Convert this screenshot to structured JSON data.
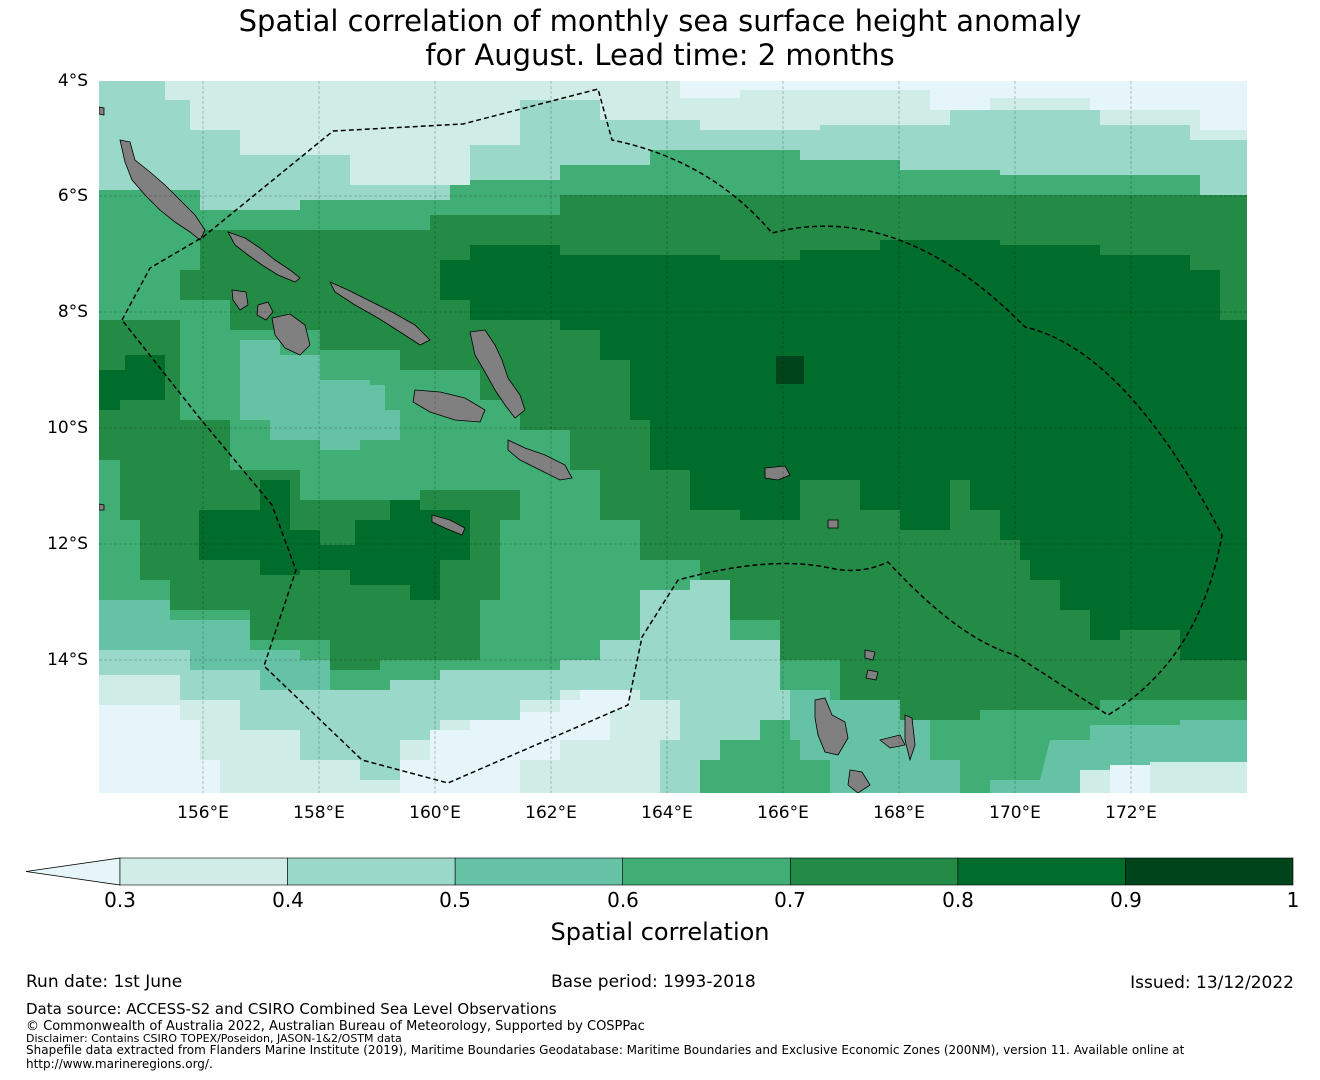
{
  "title_line1": "Spatial correlation of monthly sea surface height anomaly",
  "title_line2": "for August. Lead time: 2 months",
  "lat_labels": [
    "4°S",
    "6°S",
    "8°S",
    "10°S",
    "12°S",
    "14°S"
  ],
  "lon_labels": [
    "156°E",
    "158°E",
    "160°E",
    "162°E",
    "164°E",
    "166°E",
    "168°E",
    "170°E",
    "172°E"
  ],
  "colorbar": {
    "ticks": [
      "0.3",
      "0.4",
      "0.5",
      "0.6",
      "0.7",
      "0.8",
      "0.9",
      "1"
    ],
    "colors": [
      "#cfece6",
      "#9ad8c9",
      "#66c2a4",
      "#41ae76",
      "#238b45",
      "#006d2c",
      "#00441b"
    ],
    "extend_color": "#e5f5f9",
    "label": "Spatial correlation"
  },
  "land_color": "#808080",
  "footer": {
    "run_date": "Run date: 1st June",
    "base_period": "Base period: 1993-2018",
    "issued": "Issued: 13/12/2022",
    "data_source": "Data source: ACCESS-S2 and CSIRO Combined Sea Level Observations",
    "copyright": "© Commonwealth of Australia 2022, Australian Bureau of Meteorology, Supported by COSPPac",
    "disclaimer": "Disclaimer: Contains CSIRO TOPEX/Poseidon, JASON-1&2/OSTM data",
    "shapefile": "Shapefile data extracted from Flanders Marine Institute (2019), Maritime Boundaries Geodatabase: Maritime Boundaries and Exclusive Economic Zones (200NM), version 11. Available online at",
    "url": "http://www.marineregions.org/."
  }
}
